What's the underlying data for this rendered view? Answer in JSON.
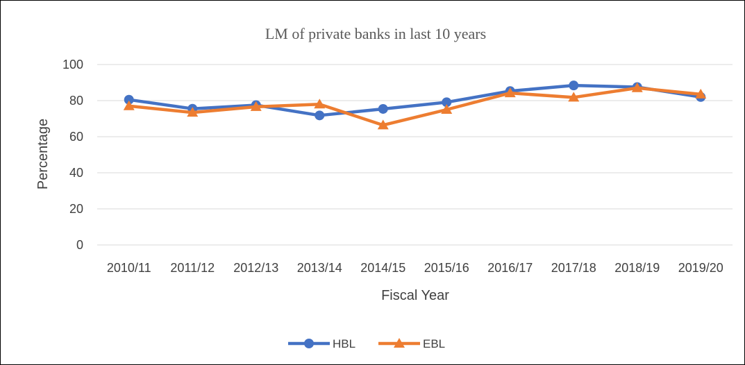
{
  "chart_data": {
    "type": "line",
    "title": "LM of private banks in last 10 years",
    "xlabel": "Fiscal Year",
    "ylabel": "Percentage",
    "categories": [
      "2010/11",
      "2011/12",
      "2012/13",
      "2013/14",
      "2014/15",
      "2015/16",
      "2016/17",
      "2017/18",
      "2018/19",
      "2019/20"
    ],
    "ylim": [
      0,
      100
    ],
    "yticks": [
      "0",
      "20",
      "40",
      "60",
      "80",
      "100"
    ],
    "grid": true,
    "legend_position": "bottom",
    "series": [
      {
        "name": "HBL",
        "color": "#4472C4",
        "marker": "circle",
        "values": [
          80.5,
          75.5,
          77.5,
          71.8,
          75.4,
          79.1,
          85.3,
          88.4,
          87.5,
          82.0
        ]
      },
      {
        "name": "EBL",
        "color": "#ED7D31",
        "marker": "triangle",
        "values": [
          77.0,
          73.4,
          76.6,
          78.0,
          66.4,
          75.0,
          84.2,
          81.8,
          87.0,
          83.5
        ]
      }
    ]
  }
}
